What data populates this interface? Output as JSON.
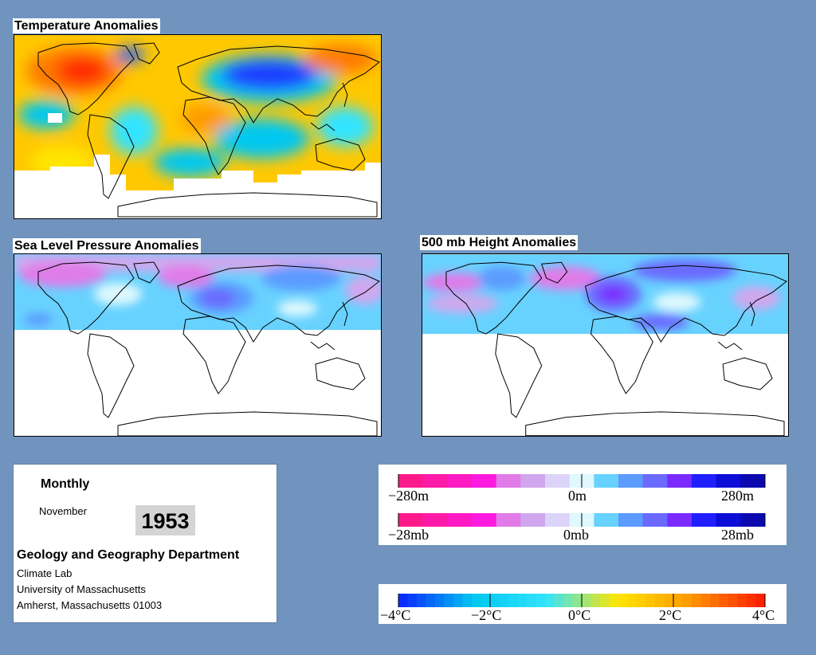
{
  "panels": {
    "temperature": {
      "title": "Temperature Anomalies"
    },
    "pressure": {
      "title": "Sea Level Pressure Anomalies"
    },
    "height": {
      "title": "500 mb Height Anomalies"
    }
  },
  "info": {
    "period": "Monthly",
    "month": "November",
    "year": "1953",
    "department": "Geology and Geography Department",
    "lines": [
      "Climate Lab",
      "University of Massachusetts",
      "Amherst, Massachusetts 01003"
    ]
  },
  "legend_height": {
    "min_label": "−280m",
    "mid_label": "0m",
    "max_label": "280m",
    "colors": [
      "#ff1a8c",
      "#ff1aa8",
      "#ff1ac4",
      "#ff1ae0",
      "#e07be8",
      "#d0a7ee",
      "#dcd4f8",
      "#dff9fe",
      "#68d2ff",
      "#5c9bff",
      "#6a6aff",
      "#7a2aff",
      "#1f1fff",
      "#0d0dd8",
      "#0a0ab0"
    ]
  },
  "legend_pressure": {
    "min_label": "−28mb",
    "mid_label": "0mb",
    "max_label": "28mb",
    "colors": [
      "#ff1a8c",
      "#ff1aa8",
      "#ff1ac4",
      "#ff1ae0",
      "#e07be8",
      "#d0a7ee",
      "#dcd4f8",
      "#dff9fe",
      "#68d2ff",
      "#5c9bff",
      "#6a6aff",
      "#7a2aff",
      "#1f1fff",
      "#0d0dd8",
      "#0a0ab0"
    ]
  },
  "legend_temperature": {
    "labels": [
      "−4°C",
      "−2°C",
      "0°C",
      "2°C",
      "4°C"
    ],
    "colors": [
      "#0a2cff",
      "#00c8f0",
      "#33e4ff",
      "#ffe600",
      "#ff9a00",
      "#ff2000"
    ]
  },
  "colors": {
    "background": "#7094be",
    "land_outline": "#000000"
  }
}
